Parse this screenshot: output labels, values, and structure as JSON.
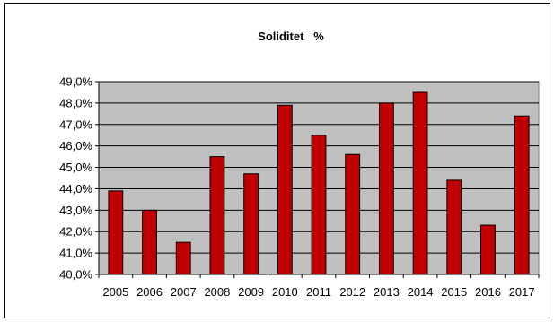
{
  "chart_data": {
    "type": "bar",
    "title": "Soliditet   %",
    "xlabel": "",
    "ylabel": "",
    "categories": [
      "2005",
      "2006",
      "2007",
      "2008",
      "2009",
      "2010",
      "2011",
      "2012",
      "2013",
      "2014",
      "2015",
      "2016",
      "2017"
    ],
    "values": [
      43.9,
      43.0,
      41.5,
      45.5,
      44.7,
      47.9,
      46.5,
      45.6,
      48.0,
      48.5,
      44.4,
      42.3,
      47.4
    ],
    "ylim": [
      40.0,
      49.0
    ],
    "yticks": [
      "40,0%",
      "41,0%",
      "42,0%",
      "43,0%",
      "44,0%",
      "45,0%",
      "46,0%",
      "47,0%",
      "48,0%",
      "49,0%"
    ],
    "grid": true,
    "legend": "none",
    "colors": {
      "bar_fill": "#c00000",
      "bar_stroke": "#000000",
      "plot_background": "#c0c0c0",
      "gridline": "#000000"
    }
  }
}
